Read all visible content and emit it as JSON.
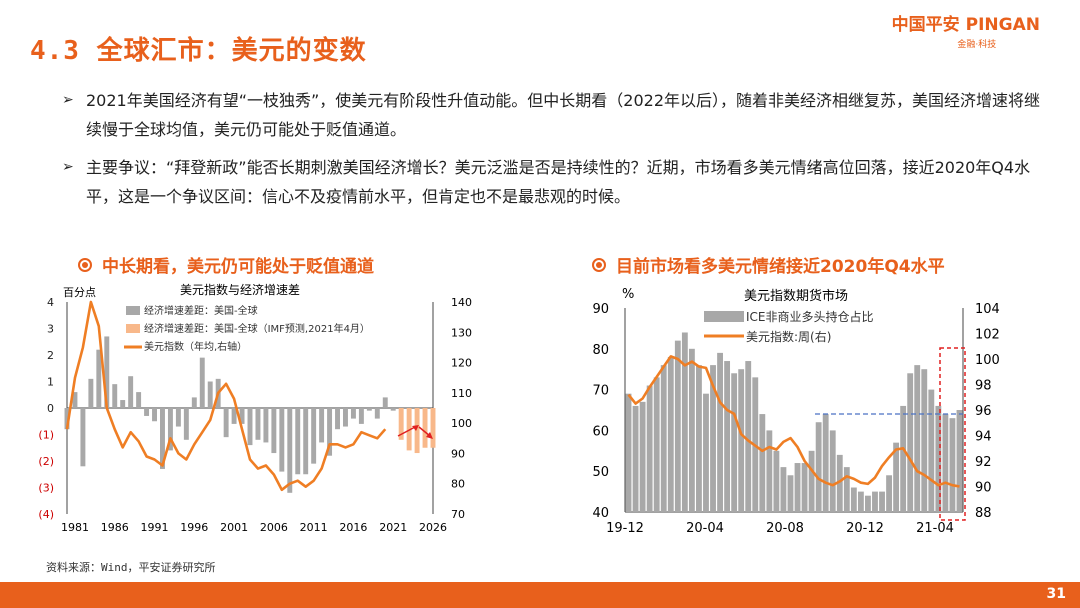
{
  "header": {
    "title": "4.3 全球汇市：美元的变数",
    "logo_cn": "中国平安",
    "logo_en": "PINGAN",
    "logo_sub": "金融·科技"
  },
  "bullets": [
    "2021年美国经济有望“一枝独秀”，使美元有阶段性升值动能。但中长期看（2022年以后），随着非美经济相继复苏，美国经济增速将继续慢于全球均值，美元仍可能处于贬值通道。",
    "主要争议：“拜登新政”能否长期刺激美国经济增长？美元泛滥是否是持续性的？近期，市场看多美元情绪高位回落，接近2020年Q4水平，这是一个争议区间：信心不及疫情前水平，但肯定也不是最悲观的时候。"
  ],
  "left_heading": "中长期看，美元仍可能处于贬值通道",
  "right_heading": "目前市场看多美元情绪接近2020年Q4水平",
  "source": "资料来源：Wind，平安证券研究所",
  "page_number": "31",
  "colors": {
    "accent": "#e8601c",
    "bar_gray": "#a8a8a8",
    "bar_peach": "#f8b88a",
    "line_orange": "#ef7e24",
    "dash_blue": "#4a72c4",
    "box_red": "#e02020"
  },
  "chart_data": [
    {
      "type": "bar",
      "title": "美元指数与经济增速差",
      "ylabel": "百分点",
      "ylim": [
        -4,
        4
      ],
      "y2lim": [
        70,
        140
      ],
      "yticks": [
        "4",
        "3",
        "2",
        "1",
        "0",
        "(1)",
        "(2)",
        "(3)",
        "(4)"
      ],
      "y2ticks": [
        "140",
        "130",
        "120",
        "110",
        "100",
        "90",
        "80",
        "70"
      ],
      "xticks": [
        "1981",
        "1986",
        "1991",
        "1996",
        "2001",
        "2006",
        "2011",
        "2016",
        "2021",
        "2026"
      ],
      "legend": [
        "经济增速差距：美国-全球",
        "经济增速差距：美国-全球（IMF预测,2021年4月）",
        "美元指数（年均,右轴）"
      ],
      "x_start": 1980,
      "series": [
        {
          "values": [
            -0.8,
            0.6,
            -2.2,
            1.1,
            2.2,
            2.7,
            0.9,
            0.3,
            1.2,
            0.6,
            -0.3,
            -0.5,
            -2.3,
            -1.6,
            -0.7,
            -1.2,
            0.4,
            1.9,
            1.0,
            1.1,
            -1.1,
            -0.6,
            -0.6,
            -1.4,
            -1.2,
            -1.3,
            -1.7,
            -2.4,
            -3.2,
            -2.5,
            -2.5,
            -2.1,
            -1.3,
            -1.8,
            -0.8,
            -0.7,
            -0.4,
            -0.6,
            -0.1,
            -0.4,
            0.4,
            -0.1
          ]
        },
        {
          "values": [
            -1.2,
            -1.6,
            -1.7,
            -1.5,
            -1.5
          ]
        },
        {
          "values": [
            98,
            115,
            125,
            140,
            132,
            105,
            98,
            92,
            97,
            94,
            89,
            88,
            86,
            95,
            90,
            88,
            93,
            97,
            101,
            110,
            113,
            108,
            98,
            88,
            85,
            86,
            83,
            78,
            80,
            81,
            79,
            81,
            85,
            93,
            93,
            92,
            93,
            97,
            96,
            95,
            98
          ]
        }
      ]
    },
    {
      "type": "area",
      "title": "美元指数期货市场",
      "ylabel": "%",
      "ylim": [
        40,
        90
      ],
      "y2lim": [
        88,
        104
      ],
      "yticks": [
        "90",
        "80",
        "70",
        "60",
        "50",
        "40"
      ],
      "y2ticks": [
        "104",
        "102",
        "100",
        "98",
        "96",
        "94",
        "92",
        "90",
        "88"
      ],
      "xticks": [
        "19-12",
        "20-04",
        "20-08",
        "20-12",
        "21-04"
      ],
      "legend": [
        "ICE非商业多头持仓占比",
        "美元指数:周(右)"
      ],
      "series": [
        {
          "values": [
            69,
            66,
            67,
            71,
            73,
            76,
            78,
            82,
            84,
            80,
            76,
            69,
            76,
            79,
            77,
            74,
            75,
            77,
            73,
            64,
            60,
            55,
            51,
            49,
            52,
            52,
            55,
            62,
            64,
            60,
            54,
            51,
            46,
            45,
            44,
            45,
            45,
            49,
            57,
            66,
            74,
            76,
            75,
            70,
            66,
            64,
            63,
            65
          ]
        },
        {
          "values": [
            97.2,
            96.5,
            96.9,
            97.8,
            98.6,
            99.4,
            100.2,
            100.0,
            99.5,
            99.8,
            99.4,
            99.3,
            97.9,
            96.6,
            96.0,
            95.7,
            94.1,
            93.6,
            93.2,
            92.8,
            93.1,
            92.9,
            93.5,
            93.8,
            93.1,
            92.0,
            91.3,
            90.6,
            90.3,
            90.1,
            90.4,
            90.8,
            90.6,
            90.3,
            90.2,
            90.7,
            91.6,
            92.3,
            92.9,
            93.0,
            92.1,
            91.2,
            90.9,
            90.5,
            90.1,
            90.3,
            90.1,
            90.0
          ]
        }
      ]
    }
  ]
}
